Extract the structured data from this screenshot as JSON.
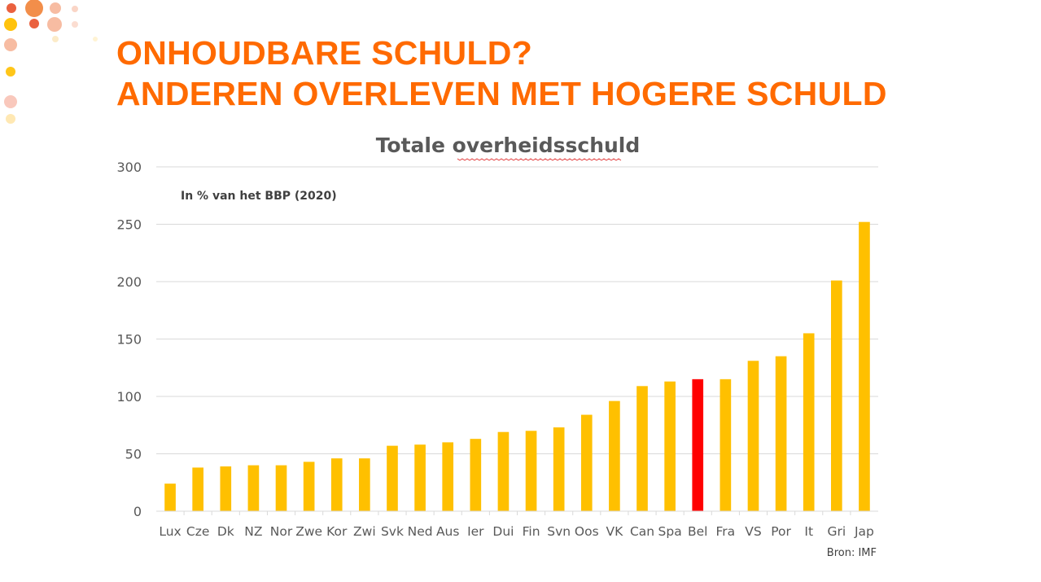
{
  "slide": {
    "title_line1": "ONHOUDBARE SCHULD?",
    "title_line2": "ANDEREN OVERLEVEN MET HOGERE SCHULD"
  },
  "colors": {
    "title": "#FF6A00",
    "bar": "#FFC000",
    "highlight": "#FF0000",
    "grid": "#D9D9D9",
    "text": "#595959"
  },
  "chart_data": {
    "type": "bar",
    "title": "Totale overheidsschuld",
    "subtitle": "In % van het BBP (2020)",
    "source": "Bron: IMF",
    "xlabel": "",
    "ylabel": "",
    "ylim": [
      0,
      300
    ],
    "yticks": [
      0,
      50,
      100,
      150,
      200,
      250,
      300
    ],
    "grid": true,
    "highlight_category": "Bel",
    "categories": [
      "Lux",
      "Cze",
      "Dk",
      "NZ",
      "Nor",
      "Zwe",
      "Kor",
      "Zwi",
      "Svk",
      "Ned",
      "Aus",
      "Ier",
      "Dui",
      "Fin",
      "Svn",
      "Oos",
      "VK",
      "Can",
      "Spa",
      "Bel",
      "Fra",
      "VS",
      "Por",
      "It",
      "Gri",
      "Jap"
    ],
    "values": [
      24,
      38,
      39,
      40,
      40,
      43,
      46,
      46,
      57,
      58,
      60,
      63,
      69,
      70,
      73,
      84,
      96,
      109,
      113,
      115,
      115,
      131,
      135,
      155,
      201,
      252
    ]
  }
}
